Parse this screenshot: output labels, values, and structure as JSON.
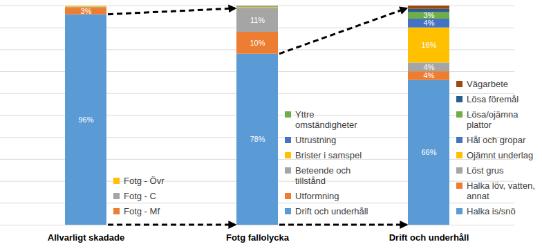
{
  "chart_data": [
    {
      "type": "bar",
      "stacked": true,
      "grid": true,
      "tick_labels": "x",
      "data_labels": true,
      "categories": [
        "Allvarligt skadade"
      ],
      "ylim": [
        0,
        100
      ],
      "yticks": [
        0,
        10,
        20,
        30,
        40,
        50,
        60,
        70,
        80,
        90,
        100
      ],
      "series": [
        {
          "name": null,
          "color": "#5b9bd5",
          "values": [
            96
          ],
          "value_labels": [
            "96%"
          ]
        },
        {
          "name": "Fotg - Mf",
          "color": "#ed7d31",
          "values": [
            3
          ],
          "value_labels": [
            "3%"
          ]
        },
        {
          "name": "Fotg - C",
          "color": "#a5a5a5",
          "values": [
            0.5
          ],
          "value_labels": [
            null
          ]
        },
        {
          "name": "Fotg - Övr",
          "color": "#ffc000",
          "values": [
            0.5
          ],
          "value_labels": [
            null
          ]
        }
      ]
    },
    {
      "type": "bar",
      "stacked": true,
      "grid": true,
      "tick_labels": "x",
      "data_labels": true,
      "categories": [
        "Fotg fallolycka"
      ],
      "ylim": [
        0,
        100
      ],
      "yticks": [
        0,
        10,
        20,
        30,
        40,
        50,
        60,
        70,
        80,
        90,
        100
      ],
      "series": [
        {
          "name": "Drift och underhåll",
          "color": "#5b9bd5",
          "values": [
            78
          ],
          "value_labels": [
            "78%"
          ]
        },
        {
          "name": "Utformning",
          "color": "#ed7d31",
          "values": [
            10
          ],
          "value_labels": [
            "10%"
          ]
        },
        {
          "name": "Beteende och tillstånd",
          "color": "#a5a5a5",
          "values": [
            11
          ],
          "value_labels": [
            "11%"
          ]
        },
        {
          "name": "Brister i samspel",
          "color": "#ffc000",
          "values": [
            0.5
          ],
          "value_labels": [
            null
          ]
        },
        {
          "name": "Utrustning",
          "color": "#4472c4",
          "values": [
            0.3
          ],
          "value_labels": [
            null
          ]
        },
        {
          "name": "Yttre omständigheter",
          "color": "#70ad47",
          "values": [
            0.2
          ],
          "value_labels": [
            null
          ]
        }
      ]
    },
    {
      "type": "bar",
      "stacked": true,
      "grid": true,
      "tick_labels": "x",
      "data_labels": true,
      "categories": [
        "Drift och underhåll"
      ],
      "ylim": [
        0,
        100
      ],
      "yticks": [
        0,
        10,
        20,
        30,
        40,
        50,
        60,
        70,
        80,
        90,
        100
      ],
      "series": [
        {
          "name": "Halka is/snö",
          "color": "#5b9bd5",
          "values": [
            66
          ],
          "value_labels": [
            "66%"
          ]
        },
        {
          "name": "Halka löv, vatten, annat",
          "color": "#ed7d31",
          "values": [
            4
          ],
          "value_labels": [
            "4%"
          ]
        },
        {
          "name": "Löst grus",
          "color": "#a5a5a5",
          "values": [
            4
          ],
          "value_labels": [
            "4%"
          ]
        },
        {
          "name": "Ojämnt underlag",
          "color": "#ffc000",
          "values": [
            16
          ],
          "value_labels": [
            "16%"
          ]
        },
        {
          "name": "Hål och gropar",
          "color": "#4472c4",
          "values": [
            4
          ],
          "value_labels": [
            "4%"
          ]
        },
        {
          "name": "Lösa/ojämna plattor",
          "color": "#70ad47",
          "values": [
            3
          ],
          "value_labels": [
            "3%"
          ]
        },
        {
          "name": "Lösa föremål",
          "color": "#255e91",
          "values": [
            1.5
          ],
          "value_labels": [
            null
          ]
        },
        {
          "name": "Vägarbete",
          "color": "#9e480e",
          "values": [
            1.5
          ],
          "value_labels": [
            null
          ]
        }
      ]
    }
  ]
}
